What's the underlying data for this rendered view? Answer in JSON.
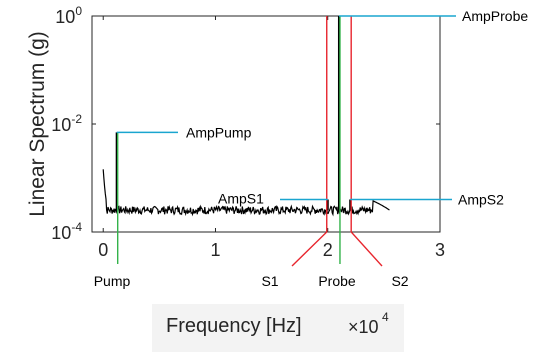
{
  "chart_data": {
    "type": "line",
    "xlabel": "Frequency [Hz]",
    "x_scale_label": "×10",
    "x_scale_exponent": "4",
    "ylabel": "Linear Spectrum (g)",
    "x_ticks": [
      "0",
      "1",
      "2",
      "3"
    ],
    "y_ticks": [
      {
        "base": "10",
        "exp": "0",
        "value": 1
      },
      {
        "base": "10",
        "exp": "-2",
        "value": 0.01
      },
      {
        "base": "10",
        "exp": "-4",
        "value": 0.0001
      }
    ],
    "xlim": [
      -0.1,
      3.0
    ],
    "ylim": [
      0.0001,
      1
    ],
    "yscale": "log",
    "series": [
      {
        "peaks": [
          {
            "label": "AmpPump",
            "x": 0.12,
            "y": 0.007
          },
          {
            "label": "AmpS1",
            "x": 2.0,
            "y": 0.0004
          },
          {
            "label": "AmpProbe",
            "x": 2.1,
            "y": 1.0
          },
          {
            "label": "AmpS2",
            "x": 2.2,
            "y": 0.0004
          }
        ],
        "noise_floor": 0.00025,
        "end_x": 2.55
      }
    ],
    "annotations": [
      {
        "text": "AmpPump"
      },
      {
        "text": "AmpS1"
      },
      {
        "text": "AmpProbe"
      },
      {
        "text": "AmpS2"
      }
    ],
    "bottom_labels": [
      "Pump",
      "S1",
      "Probe",
      "S2"
    ],
    "colors": {
      "data": "#000000",
      "cyan": "#1aa5cf",
      "green": "#33b34a",
      "red": "#e8262e"
    }
  }
}
